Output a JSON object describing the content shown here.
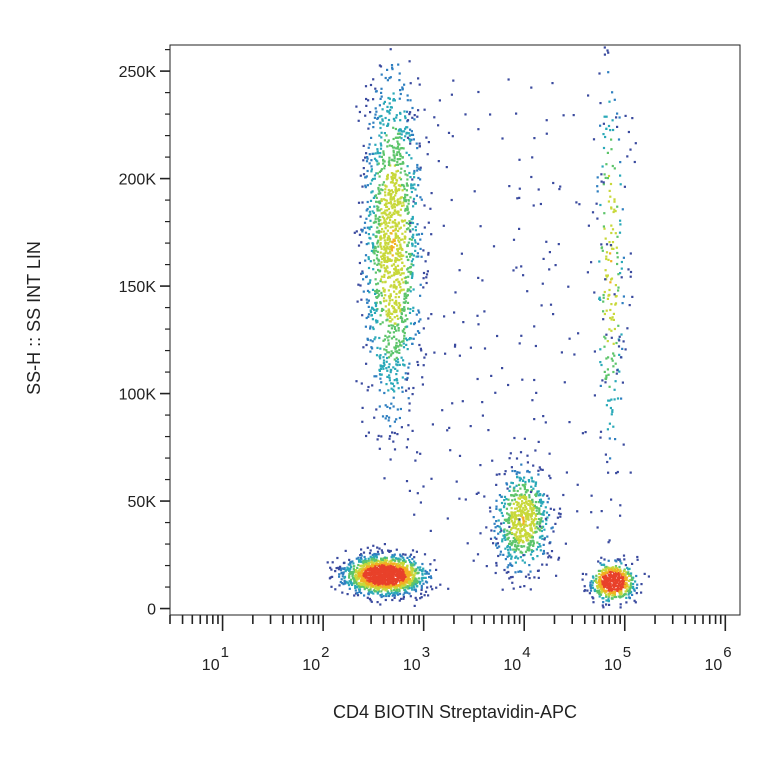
{
  "chart_data": {
    "type": "scatter",
    "title": "",
    "xlabel": "CD4 BIOTIN Streptavidin-APC",
    "ylabel": "SS-H :: SS INT LIN",
    "x_scale": "log",
    "xlim": [
      3,
      1400000
    ],
    "ylim": [
      -3000,
      262144
    ],
    "grid": false,
    "legend": "none",
    "x_ticks": [
      {
        "value": 10,
        "base": "10",
        "exp": "1"
      },
      {
        "value": 100,
        "base": "10",
        "exp": "2"
      },
      {
        "value": 1000,
        "base": "10",
        "exp": "3"
      },
      {
        "value": 10000,
        "base": "10",
        "exp": "4"
      },
      {
        "value": 100000,
        "base": "10",
        "exp": "5"
      },
      {
        "value": 1000000,
        "base": "10",
        "exp": "6"
      }
    ],
    "y_ticks": [
      {
        "value": 0,
        "label": "0"
      },
      {
        "value": 50000,
        "label": "50K"
      },
      {
        "value": 100000,
        "label": "100K"
      },
      {
        "value": 150000,
        "label": "150K"
      },
      {
        "value": 200000,
        "label": "200K"
      },
      {
        "value": 250000,
        "label": "250K"
      }
    ],
    "density_colors": [
      "#3a4a9e",
      "#2f7fc0",
      "#2aa9b8",
      "#5cc46a",
      "#c8d83a",
      "#f2b021",
      "#e8412a"
    ],
    "populations": [
      {
        "name": "",
        "x_center": 400,
        "y_center": 16000,
        "x_spread_decades": 0.2,
        "y_spread": 4500,
        "count": 1500
      },
      {
        "name": "",
        "x_center": 480,
        "y_center": 170000,
        "x_spread_decades": 0.14,
        "y_spread": 40000,
        "count": 1400
      },
      {
        "name": "",
        "x_center": 9500,
        "y_center": 42000,
        "x_spread_decades": 0.14,
        "y_spread": 12000,
        "count": 650
      },
      {
        "name": "",
        "x_center": 75000,
        "y_center": 13000,
        "x_spread_decades": 0.11,
        "y_spread": 4500,
        "count": 500
      },
      {
        "name": "",
        "x_center": 70000,
        "y_center": 160000,
        "x_spread_decades": 0.07,
        "y_spread": 45000,
        "count": 200
      }
    ]
  }
}
